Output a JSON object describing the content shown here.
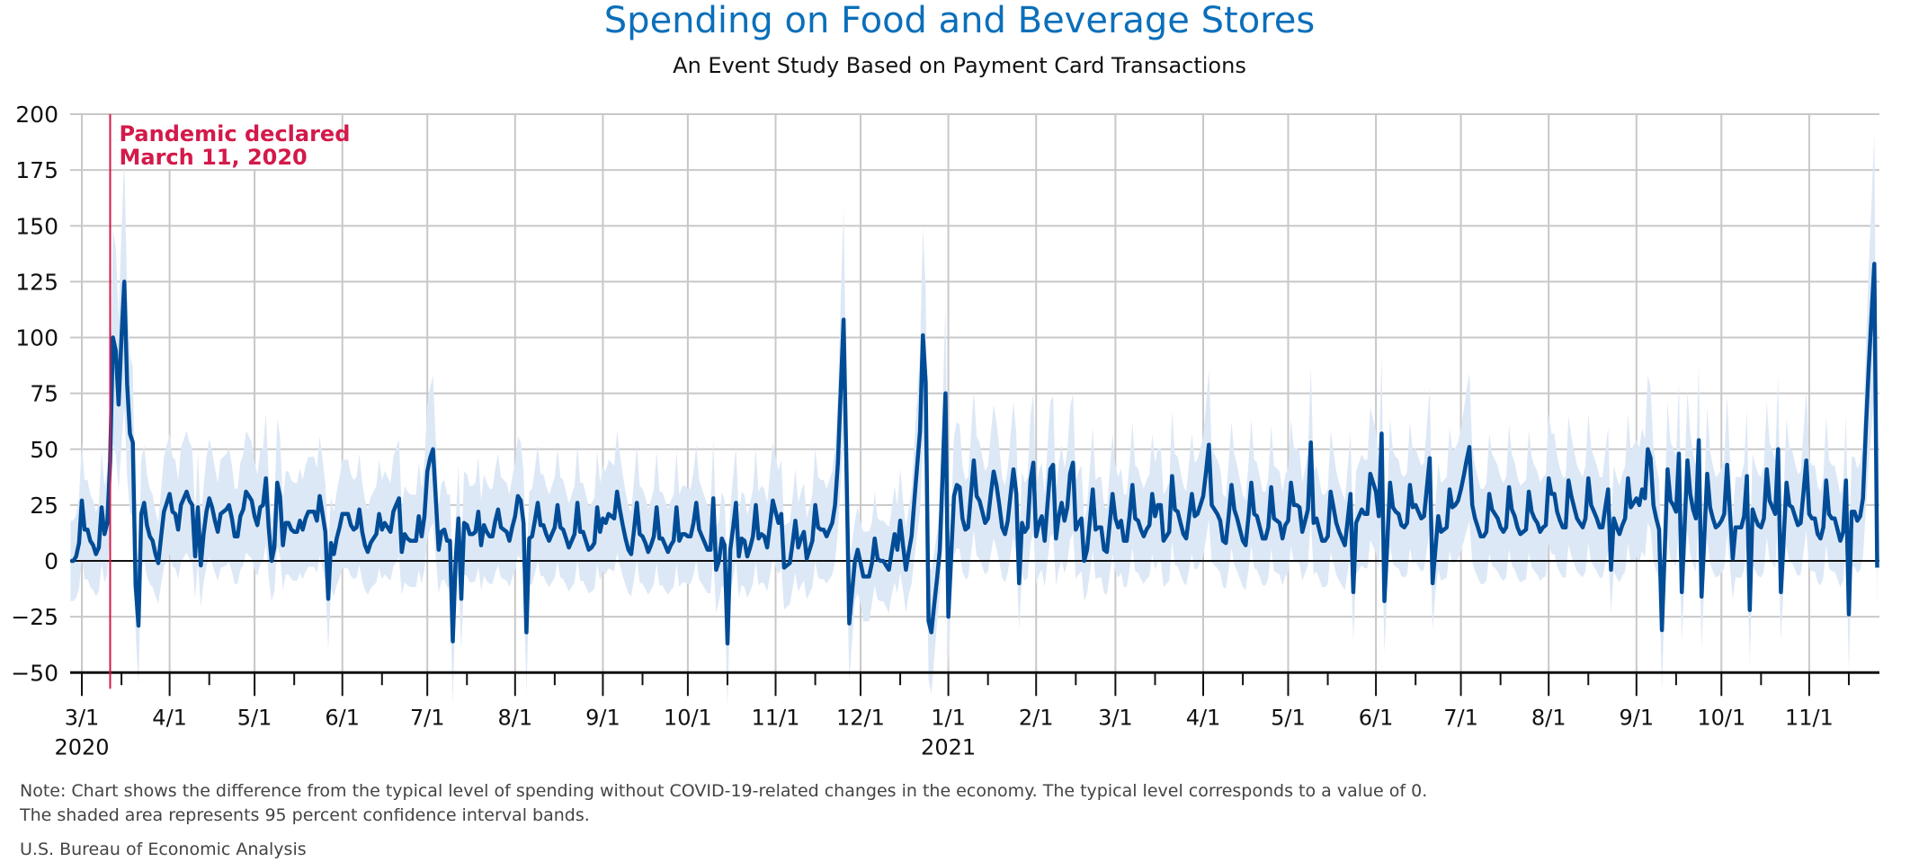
{
  "header": {
    "title": "Spending on Food and Beverage Stores",
    "subtitle": "An Event Study Based on Payment Card Transactions"
  },
  "footer": {
    "note_line1": "Note: Chart shows the difference from the typical level of spending without COVID-19-related changes in the economy. The typical level corresponds to a value of 0.",
    "note_line2": "The shaded area represents 95 percent confidence interval bands.",
    "source": "U.S. Bureau of Economic Analysis"
  },
  "chart_data": {
    "type": "line",
    "title": "Spending on Food and Beverage Stores",
    "subtitle": "An Event Study Based on Payment Card Transactions",
    "xlabel": "",
    "ylabel": "",
    "ylim": [
      -50,
      200
    ],
    "yticks": [
      200,
      175,
      150,
      125,
      100,
      75,
      50,
      25,
      0,
      -25,
      -50
    ],
    "ytick_labels": [
      "200",
      "175",
      "150",
      "125",
      "100",
      "75",
      "50",
      "25",
      "0",
      "−25",
      "−50"
    ],
    "xlim": [
      "2020-02-26",
      "2021-11-25"
    ],
    "xticks": [
      {
        "date": "2020-03-01",
        "label": "3/1",
        "year": "2020"
      },
      {
        "date": "2020-04-01",
        "label": "4/1"
      },
      {
        "date": "2020-05-01",
        "label": "5/1"
      },
      {
        "date": "2020-06-01",
        "label": "6/1"
      },
      {
        "date": "2020-07-01",
        "label": "7/1"
      },
      {
        "date": "2020-08-01",
        "label": "8/1"
      },
      {
        "date": "2020-09-01",
        "label": "9/1"
      },
      {
        "date": "2020-10-01",
        "label": "10/1"
      },
      {
        "date": "2020-11-01",
        "label": "11/1"
      },
      {
        "date": "2020-12-01",
        "label": "12/1"
      },
      {
        "date": "2021-01-01",
        "label": "1/1",
        "year": "2021"
      },
      {
        "date": "2021-02-01",
        "label": "2/1"
      },
      {
        "date": "2021-03-01",
        "label": "3/1"
      },
      {
        "date": "2021-04-01",
        "label": "4/1"
      },
      {
        "date": "2021-05-01",
        "label": "5/1"
      },
      {
        "date": "2021-06-01",
        "label": "6/1"
      },
      {
        "date": "2021-07-01",
        "label": "7/1"
      },
      {
        "date": "2021-08-01",
        "label": "8/1"
      },
      {
        "date": "2021-09-01",
        "label": "9/1"
      },
      {
        "date": "2021-10-01",
        "label": "10/1"
      },
      {
        "date": "2021-11-01",
        "label": "11/1"
      }
    ],
    "grid": true,
    "legend": "none",
    "colors": {
      "line": "#004c97",
      "band": "#dde8f6",
      "annotation": "#d31a4a",
      "grid": "#c8c8c8",
      "title": "#0b6fba"
    },
    "annotation": {
      "date": "2020-03-11",
      "line1": "Pandemic declared",
      "line2": "March 11, 2020"
    },
    "series": [
      {
        "frequency": "daily",
        "start": "2020-02-26",
        "confidence_band": "95 percent",
        "values": [
          0,
          0,
          2,
          8,
          27,
          14,
          14,
          9,
          7,
          3,
          6,
          24,
          12,
          17,
          45,
          100,
          94,
          70,
          100,
          125,
          79,
          57,
          53,
          -11,
          -29,
          21,
          26,
          16,
          11,
          9,
          3,
          -1,
          11,
          22,
          26,
          30,
          22,
          21,
          14,
          25,
          28,
          31,
          27,
          25,
          2,
          24,
          -2,
          12,
          22,
          28,
          24,
          18,
          13,
          21,
          22,
          23,
          25,
          19,
          11,
          11,
          20,
          23,
          31,
          29,
          27,
          20,
          16,
          24,
          25,
          37,
          15,
          0,
          6,
          35,
          29,
          7,
          17,
          17,
          14,
          13,
          13,
          18,
          14,
          19,
          22,
          22,
          22,
          18,
          29,
          21,
          13,
          -17,
          8,
          3,
          10,
          15,
          21,
          21,
          21,
          16,
          14,
          15,
          23,
          13,
          7,
          4,
          8,
          10,
          12,
          21,
          14,
          17,
          15,
          13,
          22,
          25,
          28,
          4,
          12,
          10,
          9,
          9,
          9,
          20,
          11,
          20,
          40,
          46,
          50,
          28,
          5,
          13,
          14,
          9,
          9,
          -36,
          0,
          19,
          -17,
          17,
          16,
          12,
          12,
          13,
          22,
          7,
          16,
          13,
          11,
          11,
          18,
          23,
          15,
          14,
          13,
          9,
          15,
          20,
          29,
          27,
          17,
          -32,
          10,
          11,
          18,
          26,
          16,
          16,
          12,
          9,
          12,
          15,
          25,
          15,
          14,
          10,
          6,
          9,
          12,
          26,
          13,
          13,
          9,
          5,
          6,
          8,
          24,
          13,
          19,
          17,
          21,
          20,
          19,
          31,
          23,
          16,
          10,
          5,
          3,
          14,
          26,
          12,
          11,
          8,
          4,
          7,
          11,
          24,
          10,
          10,
          7,
          4,
          7,
          9,
          24,
          9,
          12,
          12,
          11,
          11,
          17,
          26,
          14,
          11,
          8,
          5,
          5,
          28,
          -4,
          0,
          10,
          7,
          -37,
          5,
          15,
          26,
          2,
          10,
          9,
          2,
          6,
          11,
          25,
          10,
          12,
          11,
          6,
          16,
          27,
          22,
          17,
          21,
          -3,
          -2,
          -1,
          8,
          18,
          6,
          10,
          13,
          1,
          5,
          9,
          25,
          15,
          14,
          14,
          11,
          14,
          17,
          25,
          44,
          76,
          108,
          44,
          -28,
          -14,
          0,
          5,
          -1,
          -7,
          -7,
          -7,
          -1,
          10,
          1,
          0,
          0,
          -2,
          -4,
          4,
          12,
          5,
          18,
          7,
          -4,
          4,
          11,
          27,
          43,
          58,
          101,
          80,
          -27,
          -32,
          -20,
          -8,
          5,
          40,
          75,
          -25,
          2,
          29,
          34,
          33,
          19,
          14,
          15,
          30,
          45,
          29,
          27,
          22,
          17,
          19,
          30,
          40,
          34,
          25,
          15,
          12,
          18,
          30,
          41,
          30,
          -10,
          17,
          13,
          15,
          36,
          44,
          11,
          17,
          20,
          9,
          25,
          41,
          43,
          10,
          20,
          26,
          18,
          24,
          39,
          44,
          14,
          17,
          19,
          0,
          5,
          18,
          32,
          14,
          15,
          15,
          5,
          4,
          17,
          30,
          19,
          15,
          18,
          9,
          9,
          20,
          34,
          19,
          18,
          14,
          11,
          14,
          16,
          30,
          20,
          25,
          25,
          9,
          11,
          13,
          38,
          23,
          22,
          17,
          12,
          10,
          20,
          30,
          20,
          21,
          25,
          29,
          40,
          52,
          25,
          23,
          21,
          18,
          9,
          8,
          20,
          34,
          23,
          19,
          14,
          9,
          7,
          20,
          35,
          21,
          20,
          15,
          10,
          10,
          15,
          33,
          19,
          18,
          17,
          10,
          16,
          18,
          35,
          25,
          25,
          24,
          13,
          18,
          23,
          53,
          17,
          19,
          14,
          9,
          9,
          11,
          31,
          24,
          17,
          13,
          10,
          7,
          18,
          30,
          -14,
          17,
          20,
          23,
          21,
          21,
          39,
          35,
          31,
          20,
          57,
          -18,
          8,
          35,
          24,
          22,
          21,
          16,
          15,
          17,
          34,
          24,
          25,
          22,
          19,
          20,
          33,
          46,
          -10,
          5,
          20,
          13,
          14,
          15,
          32,
          24,
          25,
          27,
          32,
          38,
          45,
          51,
          25,
          19,
          15,
          11,
          11,
          13,
          30,
          23,
          21,
          19,
          15,
          13,
          15,
          33,
          23,
          20,
          15,
          12,
          13,
          14,
          31,
          22,
          19,
          17,
          13,
          15,
          16,
          37,
          30,
          30,
          22,
          18,
          15,
          15,
          36,
          29,
          24,
          19,
          17,
          15,
          19,
          37,
          25,
          22,
          19,
          15,
          15,
          24,
          32,
          -4,
          19,
          15,
          12,
          16,
          19,
          37,
          24,
          26,
          28,
          25,
          32,
          28,
          50,
          46,
          25,
          19,
          14,
          -31,
          5,
          41,
          27,
          25,
          22,
          48,
          -14,
          15,
          45,
          30,
          23,
          19,
          54,
          -16,
          12,
          39,
          24,
          19,
          15,
          16,
          18,
          21,
          43,
          22,
          1,
          15,
          15,
          15,
          20,
          38,
          -22,
          23,
          19,
          16,
          15,
          19,
          41,
          27,
          24,
          21,
          50,
          -14,
          10,
          35,
          25,
          24,
          20,
          16,
          17,
          31,
          45,
          21,
          19,
          19,
          12,
          10,
          15,
          36,
          21,
          19,
          19,
          14,
          9,
          13,
          36,
          -24,
          22,
          22,
          18,
          20,
          28,
          59,
          86,
          110,
          133,
          -3
        ]
      }
    ]
  }
}
